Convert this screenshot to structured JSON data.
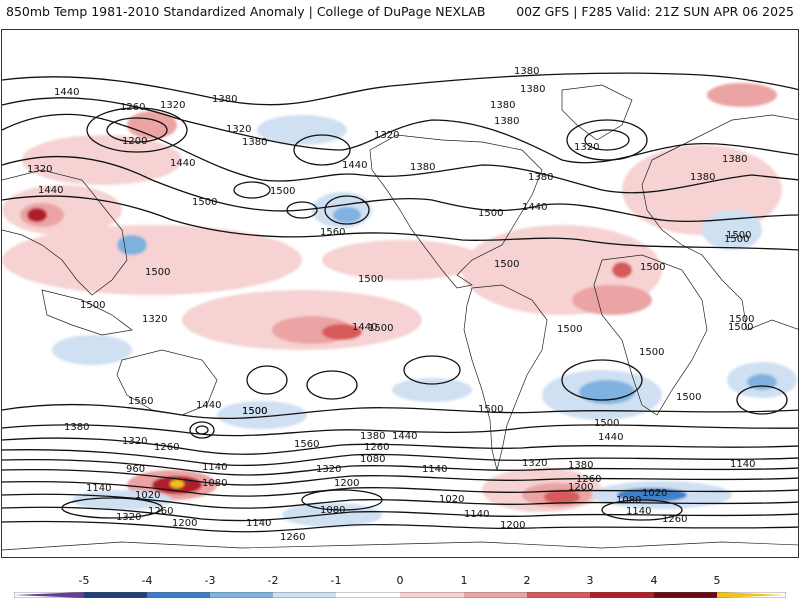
{
  "header": {
    "title": "850mb Temp 1981-2010 Standardized Anomaly | College of DuPage NEXLAB",
    "valid": "00Z GFS | F285 Valid: 21Z SUN APR 06 2025"
  },
  "colors": {
    "cold_5": "#6a3d9a",
    "cold_4": "#1f3e7a",
    "cold_3": "#3c7fc8",
    "cold_2": "#7fb2e0",
    "cold_1": "#cfe0f2",
    "warm_1": "#f6d2d2",
    "warm_2": "#eba3a3",
    "warm_3": "#d75a5a",
    "warm_4": "#b01e2a",
    "warm_5": "#6b0a14",
    "warm_max": "#f2c21b",
    "coast": "#222222",
    "contour": "#111111"
  },
  "colorbar": {
    "ticks": [
      "-5",
      "-4",
      "-3",
      "-2",
      "-1",
      "0",
      "1",
      "2",
      "3",
      "4",
      "5"
    ]
  },
  "contour_labels": [
    "1380",
    "1440",
    "1260",
    "1320",
    "1380",
    "1200",
    "1320",
    "1380",
    "1440",
    "1320",
    "1440",
    "1320",
    "1380",
    "1380",
    "1440",
    "1500",
    "1500",
    "1500",
    "1560",
    "1500",
    "1500",
    "1500",
    "1500",
    "1500",
    "1320",
    "1380",
    "1380",
    "1380",
    "1380",
    "1320",
    "1440",
    "1380",
    "1440",
    "1500",
    "1500",
    "1500",
    "1500",
    "1500",
    "1500",
    "1500",
    "1500",
    "1560",
    "1440",
    "1500",
    "1500",
    "1380",
    "1320",
    "1260",
    "1140",
    "960",
    "1140",
    "1020",
    "1080",
    "1260",
    "1200",
    "1320",
    "1560",
    "1380",
    "1440",
    "1260",
    "1080",
    "1200",
    "1320",
    "1140",
    "1080",
    "1020",
    "1140",
    "1200",
    "1140",
    "1260",
    "1320",
    "1380",
    "1260",
    "1200",
    "1500",
    "1440",
    "1080",
    "1020",
    "1140",
    "1140",
    "1260",
    "1500"
  ]
}
